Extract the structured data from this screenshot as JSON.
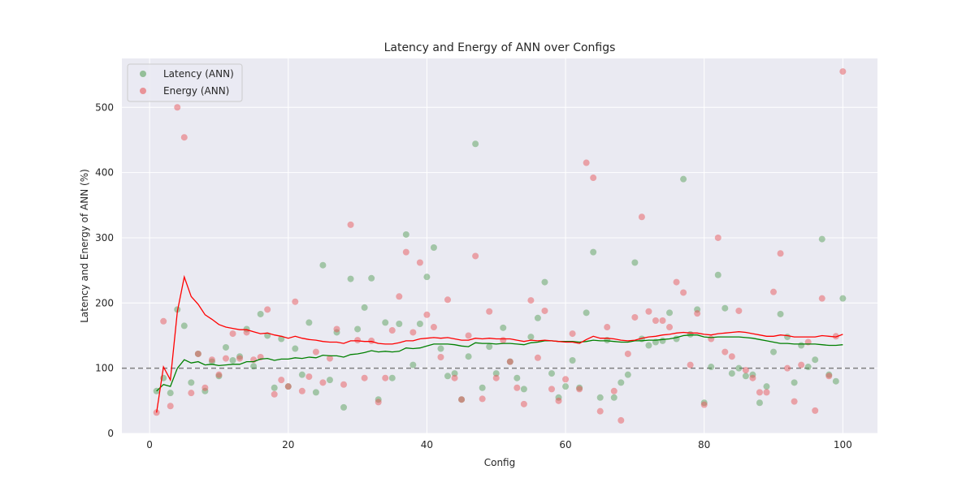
{
  "chart_data": {
    "type": "scatter",
    "title": "Latency and Energy of ANN over Configs",
    "xlabel": "Config",
    "ylabel": "Latency and Energy of ANN (%)",
    "xlim": [
      -4,
      105
    ],
    "ylim": [
      0,
      575
    ],
    "xticks": [
      0,
      20,
      40,
      60,
      80,
      100
    ],
    "yticks": [
      0,
      100,
      200,
      300,
      400,
      500
    ],
    "grid": true,
    "legend_position": "top-left",
    "reference_line": {
      "y": 100,
      "style": "dashed",
      "color": "#808080"
    },
    "x": [
      1,
      2,
      3,
      4,
      5,
      6,
      7,
      8,
      9,
      10,
      11,
      12,
      13,
      14,
      15,
      16,
      17,
      18,
      19,
      20,
      21,
      22,
      23,
      24,
      25,
      26,
      27,
      28,
      29,
      30,
      31,
      32,
      33,
      34,
      35,
      36,
      37,
      38,
      39,
      40,
      41,
      42,
      43,
      44,
      45,
      46,
      47,
      48,
      49,
      50,
      51,
      52,
      53,
      54,
      55,
      56,
      57,
      58,
      59,
      60,
      61,
      62,
      63,
      64,
      65,
      66,
      67,
      68,
      69,
      70,
      71,
      72,
      73,
      74,
      75,
      76,
      77,
      78,
      79,
      80,
      81,
      82,
      83,
      84,
      85,
      86,
      87,
      88,
      89,
      90,
      91,
      92,
      93,
      94,
      95,
      96,
      97,
      98,
      99,
      100
    ],
    "series": [
      {
        "name": "Latency (ANN)",
        "color": "#4c9a4c",
        "alpha": 0.45,
        "values": [
          65,
          85,
          62,
          190,
          165,
          78,
          122,
          65,
          110,
          88,
          132,
          112,
          118,
          160,
          103,
          183,
          150,
          70,
          145,
          72,
          130,
          90,
          170,
          63,
          258,
          82,
          155,
          40,
          237,
          160,
          193,
          238,
          52,
          170,
          85,
          168,
          305,
          105,
          168,
          240,
          285,
          130,
          88,
          92,
          52,
          118,
          444,
          70,
          133,
          92,
          162,
          110,
          85,
          68,
          148,
          177,
          232,
          92,
          55,
          72,
          112,
          70,
          185,
          278,
          55,
          143,
          55,
          78,
          90,
          262,
          145,
          135,
          140,
          142,
          185,
          145,
          390,
          152,
          190,
          47,
          102,
          243,
          192,
          92,
          100,
          88,
          90,
          47,
          72,
          125,
          183,
          148,
          78,
          135,
          102,
          113,
          298,
          90,
          80,
          207
        ],
        "moving_avg_color": "#008000",
        "moving_avg": [
          65,
          75,
          72,
          100,
          113,
          108,
          110,
          105,
          106,
          104,
          105,
          106,
          106,
          110,
          110,
          114,
          115,
          112,
          114,
          114,
          116,
          115,
          117,
          116,
          120,
          119,
          119,
          117,
          121,
          122,
          124,
          127,
          125,
          126,
          125,
          126,
          131,
          130,
          131,
          134,
          137,
          137,
          137,
          136,
          134,
          133,
          139,
          138,
          138,
          137,
          138,
          138,
          137,
          136,
          139,
          140,
          142,
          142,
          141,
          141,
          141,
          140,
          141,
          143,
          142,
          142,
          141,
          140,
          140,
          142,
          142,
          143,
          143,
          144,
          145,
          147,
          150,
          151,
          151,
          148,
          147,
          148,
          148,
          148,
          148,
          147,
          146,
          144,
          142,
          140,
          138,
          138,
          137,
          137,
          137,
          137,
          136,
          135,
          135,
          136
        ]
      },
      {
        "name": "Energy (ANN)",
        "color": "#e8585c",
        "alpha": 0.5,
        "values": [
          32,
          172,
          42,
          500,
          454,
          62,
          122,
          70,
          113,
          90,
          115,
          153,
          115,
          155,
          113,
          117,
          190,
          60,
          82,
          72,
          202,
          65,
          87,
          125,
          78,
          115,
          160,
          75,
          320,
          143,
          85,
          142,
          48,
          85,
          158,
          210,
          278,
          155,
          262,
          182,
          163,
          117,
          205,
          85,
          52,
          150,
          272,
          53,
          187,
          85,
          143,
          110,
          70,
          45,
          204,
          116,
          188,
          68,
          50,
          83,
          153,
          68,
          415,
          392,
          34,
          163,
          65,
          20,
          122,
          178,
          332,
          187,
          173,
          173,
          163,
          232,
          216,
          105,
          184,
          44,
          145,
          300,
          125,
          118,
          188,
          97,
          85,
          63,
          63,
          217,
          276,
          100,
          49,
          105,
          140,
          35,
          207,
          88,
          149,
          555
        ],
        "moving_avg_color": "#ff0000",
        "moving_avg": [
          32,
          102,
          82,
          187,
          240,
          210,
          198,
          182,
          175,
          167,
          163,
          161,
          159,
          159,
          156,
          153,
          154,
          151,
          149,
          146,
          149,
          146,
          144,
          143,
          141,
          140,
          140,
          138,
          142,
          142,
          141,
          141,
          138,
          137,
          137,
          139,
          142,
          142,
          145,
          146,
          147,
          146,
          147,
          145,
          143,
          143,
          146,
          145,
          146,
          145,
          145,
          145,
          143,
          141,
          143,
          142,
          143,
          142,
          141,
          140,
          140,
          138,
          144,
          149,
          146,
          146,
          145,
          143,
          142,
          143,
          146,
          148,
          149,
          151,
          152,
          154,
          155,
          154,
          154,
          152,
          151,
          153,
          154,
          155,
          156,
          155,
          153,
          151,
          149,
          149,
          151,
          150,
          148,
          148,
          148,
          148,
          150,
          149,
          148,
          152
        ]
      }
    ]
  }
}
